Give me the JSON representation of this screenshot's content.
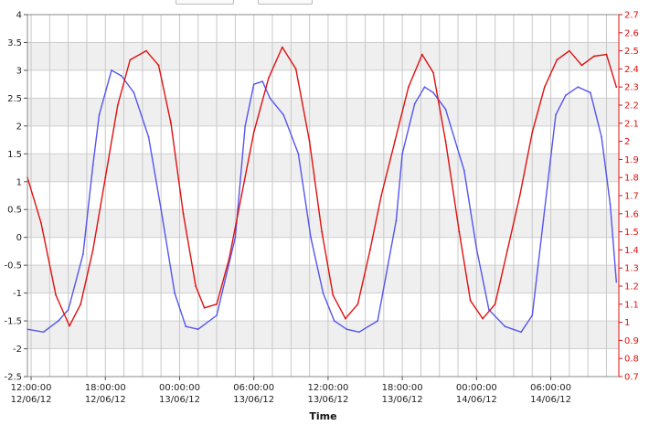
{
  "chart_data": {
    "type": "line",
    "xlabel": "Time",
    "x_ticks": [
      {
        "time": "12:00:00",
        "date": "12/06/12"
      },
      {
        "time": "18:00:00",
        "date": "12/06/12"
      },
      {
        "time": "00:00:00",
        "date": "13/06/12"
      },
      {
        "time": "06:00:00",
        "date": "13/06/12"
      },
      {
        "time": "12:00:00",
        "date": "13/06/12"
      },
      {
        "time": "18:00:00",
        "date": "13/06/12"
      },
      {
        "time": "00:00:00",
        "date": "14/06/12"
      },
      {
        "time": "06:00:00",
        "date": "14/06/12"
      }
    ],
    "xlim_hours_from_first_tick": [
      -0.3,
      47.5
    ],
    "y_left": {
      "lim": [
        -2.5,
        4
      ],
      "ticks": [
        "4",
        "3.5",
        "3",
        "2.5",
        "2",
        "1.5",
        "1",
        "0.5",
        "0",
        "-0.5",
        "-1",
        "-1.5",
        "-2",
        "-2.5"
      ]
    },
    "y_right": {
      "lim": [
        0.7,
        2.7
      ],
      "ticks": [
        "2.7",
        "2.6",
        "2.5",
        "2.4",
        "2.3",
        "2.2",
        "2.1",
        "2",
        "1.9",
        "1.8",
        "1.7",
        "1.6",
        "1.5",
        "1.4",
        "1.3",
        "1.2",
        "1.1",
        "1",
        "0.9",
        "0.8",
        "0.7"
      ]
    },
    "grid": true,
    "series": [
      {
        "axis": "left",
        "color": "#5555ee",
        "x_hours": [
          -0.3,
          1,
          2.2,
          3,
          4.2,
          5,
          5.5,
          6.5,
          7.3,
          8.3,
          9.5,
          10.5,
          11.6,
          12.5,
          13.5,
          15,
          16.5,
          17.3,
          18,
          18.7,
          19.3,
          20.4,
          21.6,
          22.6,
          23.6,
          24.5,
          25.5,
          26.5,
          28,
          29.5,
          30,
          31,
          31.8,
          32.5,
          33.5,
          35,
          36,
          37,
          38.3,
          39.6,
          40.5,
          41.4,
          42.4,
          43.2,
          44.2,
          45.2,
          46.1,
          46.8,
          47.3
        ],
        "values": [
          -1.65,
          -1.7,
          -1.5,
          -1.3,
          -0.3,
          1.3,
          2.2,
          3.0,
          2.9,
          2.6,
          1.8,
          0.5,
          -1.0,
          -1.6,
          -1.65,
          -1.4,
          0.0,
          2.0,
          2.75,
          2.8,
          2.5,
          2.2,
          1.5,
          0.0,
          -1.0,
          -1.5,
          -1.65,
          -1.7,
          -1.5,
          0.3,
          1.5,
          2.4,
          2.7,
          2.6,
          2.3,
          1.2,
          -0.2,
          -1.3,
          -1.6,
          -1.7,
          -1.4,
          0.3,
          2.2,
          2.55,
          2.7,
          2.6,
          1.8,
          0.6,
          -0.8
        ]
      },
      {
        "axis": "right",
        "color": "#e01010",
        "x_hours": [
          -0.3,
          0.8,
          2.0,
          3.1,
          4.0,
          5.0,
          6.0,
          7.0,
          8.0,
          9.3,
          10.3,
          11.3,
          12.3,
          13.3,
          14.0,
          15.0,
          16.0,
          17.0,
          18.0,
          19.2,
          20.3,
          21.4,
          22.5,
          23.5,
          24.4,
          25.4,
          26.4,
          27.4,
          28.3,
          29.4,
          30.5,
          31.6,
          32.5,
          33.5,
          34.6,
          35.5,
          36.5,
          37.5,
          38.5,
          39.5,
          40.5,
          41.5,
          42.5,
          43.5,
          44.5,
          45.5,
          46.5,
          47.3
        ],
        "values": [
          1.8,
          1.55,
          1.15,
          0.98,
          1.1,
          1.4,
          1.8,
          2.2,
          2.45,
          2.5,
          2.42,
          2.1,
          1.6,
          1.2,
          1.08,
          1.1,
          1.35,
          1.7,
          2.05,
          2.35,
          2.52,
          2.4,
          2.0,
          1.5,
          1.15,
          1.02,
          1.1,
          1.4,
          1.7,
          2.0,
          2.3,
          2.48,
          2.38,
          2.0,
          1.5,
          1.12,
          1.02,
          1.1,
          1.4,
          1.7,
          2.05,
          2.3,
          2.45,
          2.5,
          2.42,
          2.47,
          2.48,
          2.3
        ]
      }
    ]
  }
}
